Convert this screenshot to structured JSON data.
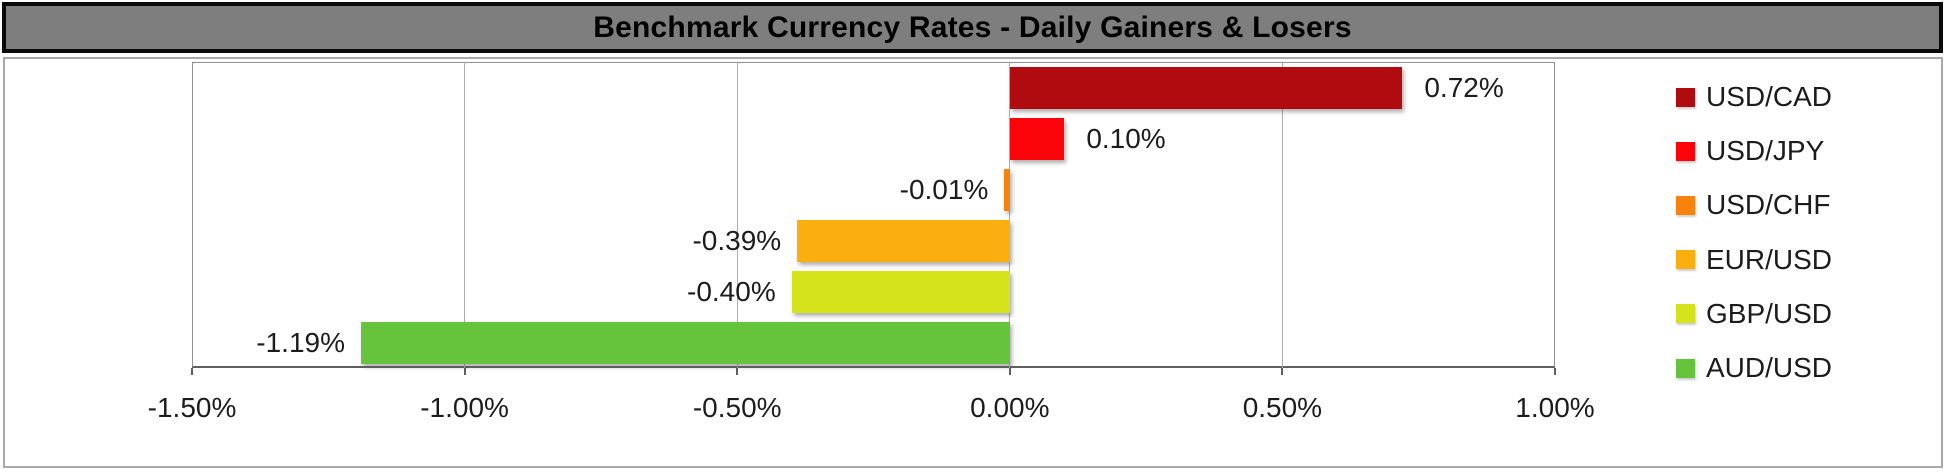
{
  "title": "Benchmark Currency Rates - Daily Gainers & Losers",
  "chart_data": {
    "type": "bar",
    "orientation": "horizontal",
    "title": "Benchmark Currency Rates - Daily Gainers & Losers",
    "categories": [
      "USD/CAD",
      "USD/JPY",
      "USD/CHF",
      "EUR/USD",
      "GBP/USD",
      "AUD/USD"
    ],
    "values": [
      0.72,
      0.1,
      -0.01,
      -0.39,
      -0.4,
      -1.19
    ],
    "data_labels": [
      "0.72%",
      "0.10%",
      "-0.01%",
      "-0.39%",
      "-0.40%",
      "-1.19%"
    ],
    "colors": [
      "#B00C10",
      "#FA040A",
      "#F8820B",
      "#FAAE0F",
      "#D5E31A",
      "#65C33C"
    ],
    "x_ticks": [
      {
        "label": "-1.50%",
        "value": -1.5
      },
      {
        "label": "-1.00%",
        "value": -1.0
      },
      {
        "label": "-0.50%",
        "value": -0.5
      },
      {
        "label": "0.00%",
        "value": 0.0
      },
      {
        "label": "0.50%",
        "value": 0.5
      },
      {
        "label": "1.00%",
        "value": 1.0
      }
    ],
    "xlim": [
      -1.5,
      1.0
    ],
    "grid": "vertical-on",
    "legend_position": "right",
    "legend": [
      {
        "label": "USD/CAD",
        "color": "#B00C10"
      },
      {
        "label": "USD/JPY",
        "color": "#FA040A"
      },
      {
        "label": "USD/CHF",
        "color": "#F8820B"
      },
      {
        "label": "EUR/USD",
        "color": "#FAAE0F"
      },
      {
        "label": "GBP/USD",
        "color": "#D5E31A"
      },
      {
        "label": "AUD/USD",
        "color": "#65C33C"
      }
    ],
    "title_bar_bg": "#7E7E7E",
    "title_bar_border": "#0A0A0A"
  }
}
